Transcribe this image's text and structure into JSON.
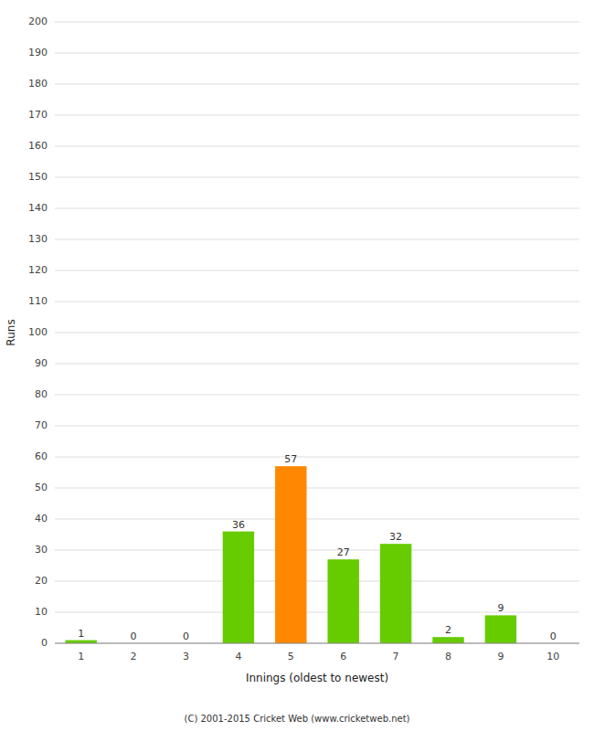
{
  "chart_data": {
    "type": "bar",
    "xlabel": "Innings (oldest to newest)",
    "ylabel": "Runs",
    "categories": [
      "1",
      "2",
      "3",
      "4",
      "5",
      "6",
      "7",
      "8",
      "9",
      "10"
    ],
    "values": [
      1,
      0,
      0,
      36,
      57,
      27,
      32,
      2,
      9,
      0
    ],
    "colors": [
      "#66cc00",
      "#66cc00",
      "#66cc00",
      "#66cc00",
      "#ff8800",
      "#66cc00",
      "#66cc00",
      "#66cc00",
      "#66cc00",
      "#66cc00"
    ],
    "ylim": [
      0,
      200
    ],
    "yticks": [
      0,
      10,
      20,
      30,
      40,
      50,
      60,
      70,
      80,
      90,
      100,
      110,
      120,
      130,
      140,
      150,
      160,
      170,
      180,
      190,
      200
    ],
    "grid": true,
    "data_labels": true,
    "annotations": [
      "(C) 2001-2015 Cricket Web (www.cricketweb.net)"
    ]
  }
}
